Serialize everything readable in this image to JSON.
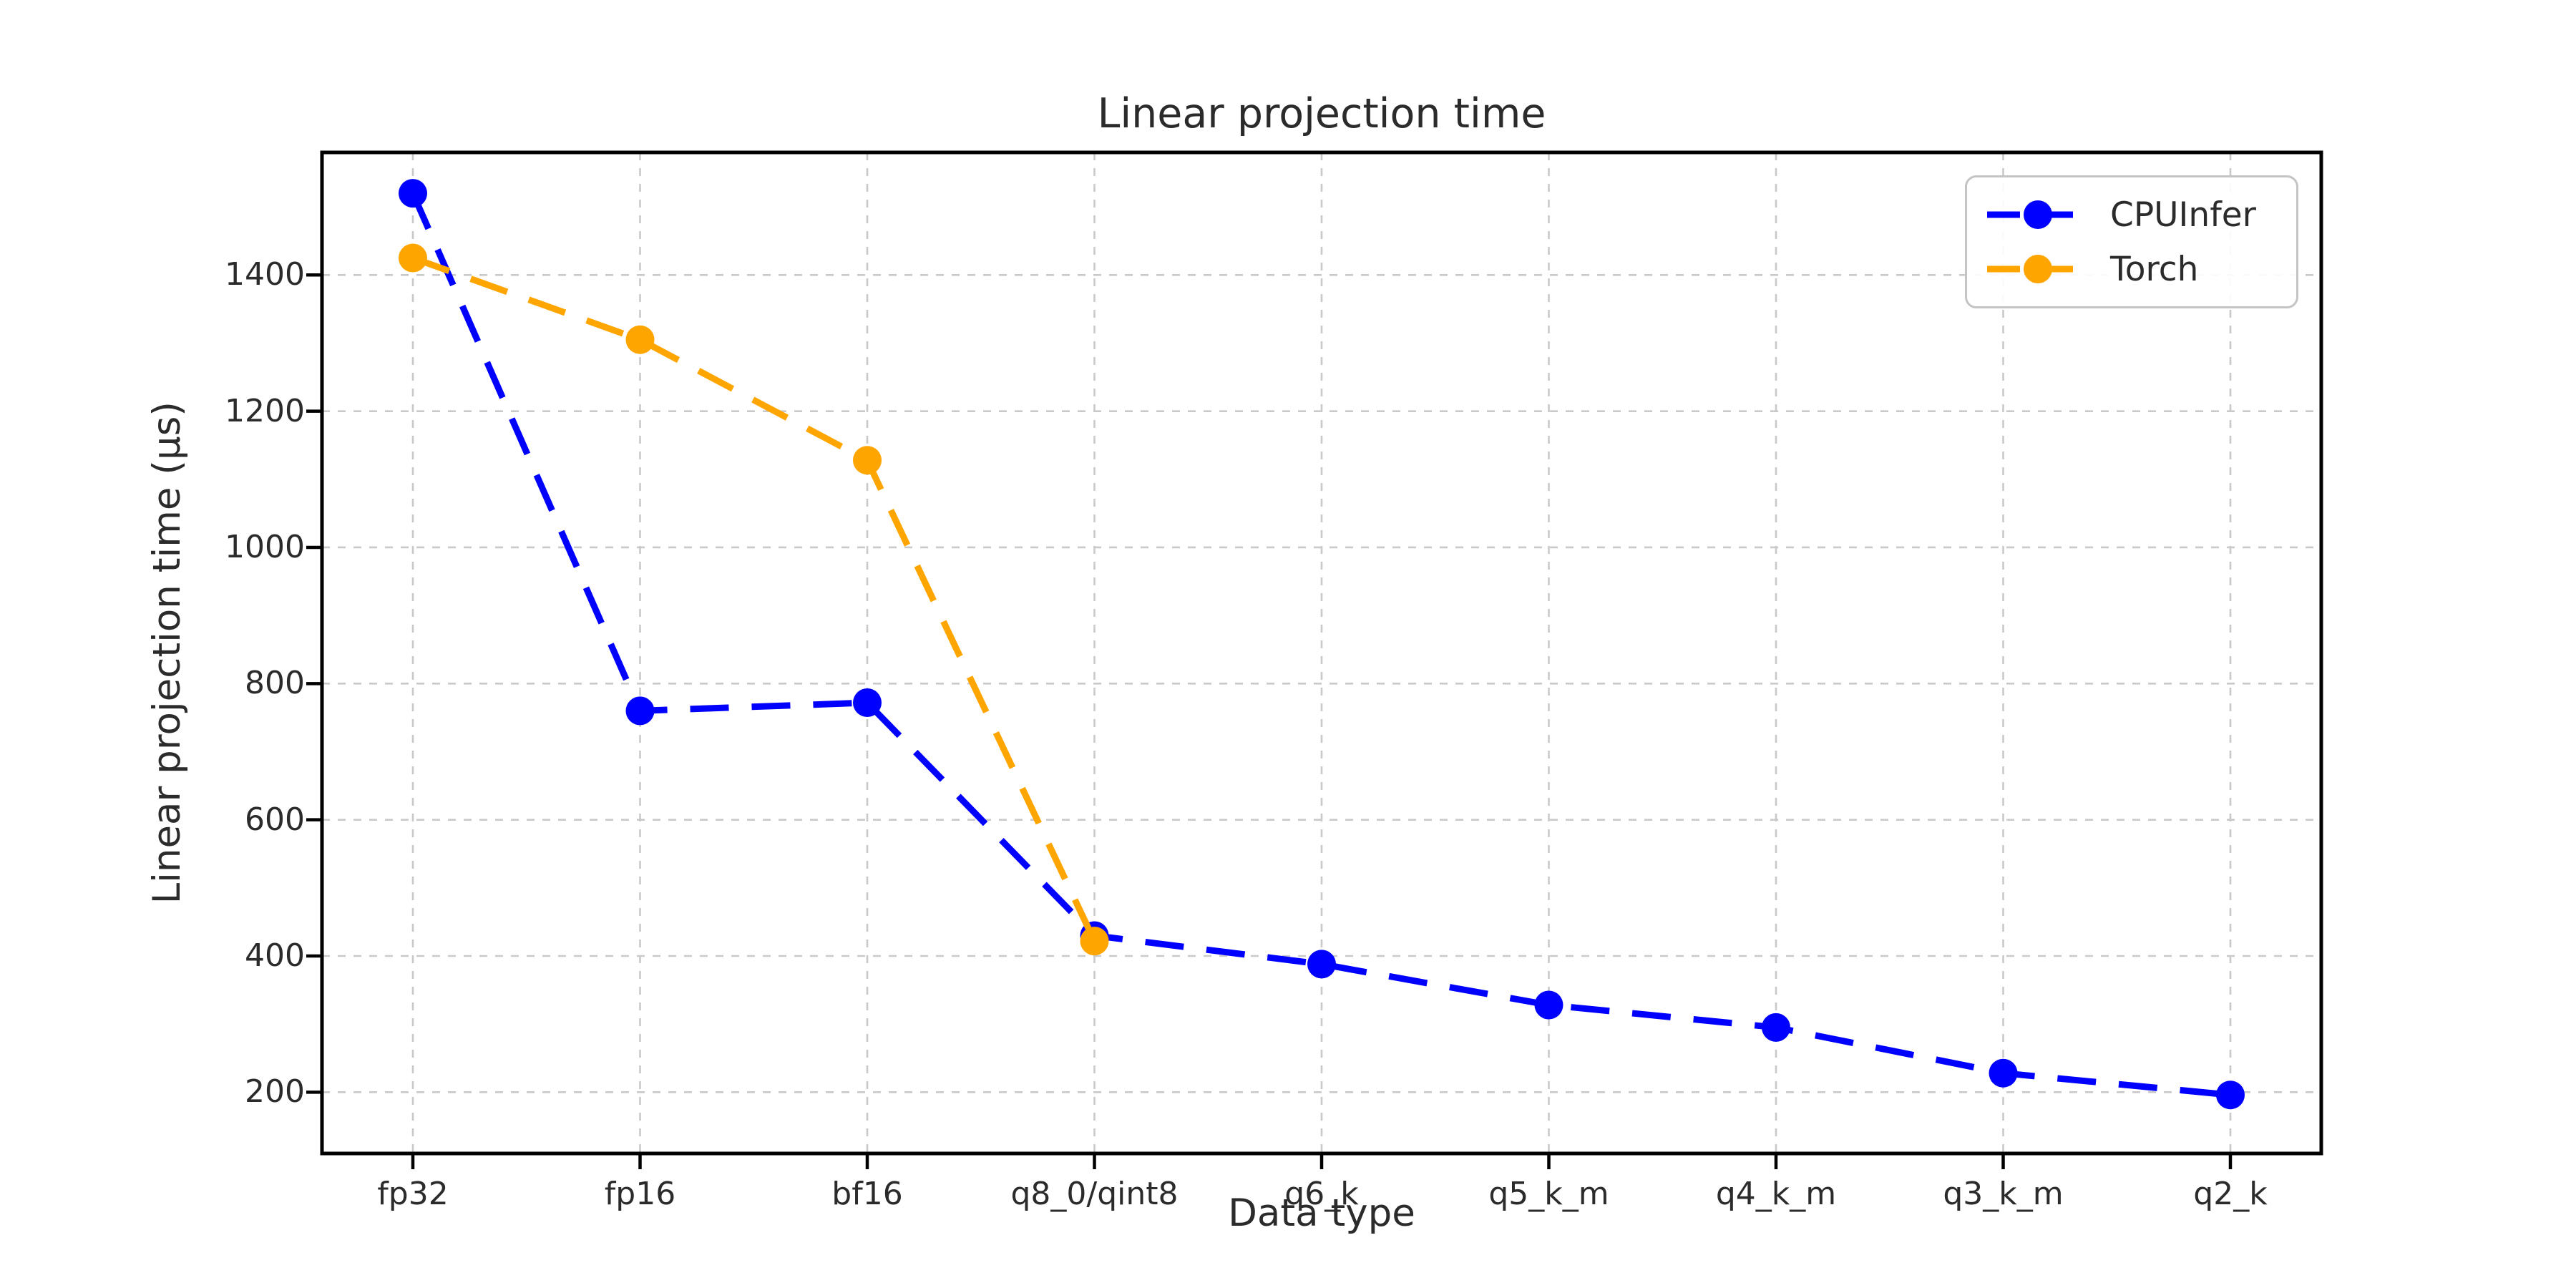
{
  "chart_data": {
    "type": "line",
    "title": "Linear projection time",
    "xlabel": "Data type",
    "ylabel": "Linear projection time (µs)",
    "categories": [
      "fp32",
      "fp16",
      "bf16",
      "q8_0/qint8",
      "q6_k",
      "q5_k_m",
      "q4_k_m",
      "q3_k_m",
      "q2_k"
    ],
    "series": [
      {
        "name": "CPUInfer",
        "color": "#0000ff",
        "values": [
          1520,
          760,
          772,
          430,
          388,
          328,
          295,
          228,
          196
        ]
      },
      {
        "name": "Torch",
        "color": "#ffa500",
        "values": [
          1425,
          1305,
          1128,
          422,
          null,
          null,
          null,
          null,
          null
        ]
      }
    ],
    "y_ticks": [
      200,
      400,
      600,
      800,
      1000,
      1200,
      1400
    ],
    "ylim": [
      110,
      1580
    ],
    "grid": true,
    "grid_style": "dashed",
    "line_style": "dashed",
    "marker": "circle",
    "legend_position": "upper right",
    "legend": [
      "CPUInfer",
      "Torch"
    ]
  },
  "colors": {
    "background": "#ffffff",
    "text": "#2b2b2b",
    "grid": "#c9c9c9",
    "spine": "#000000",
    "legend_border": "#c4c4c4"
  }
}
